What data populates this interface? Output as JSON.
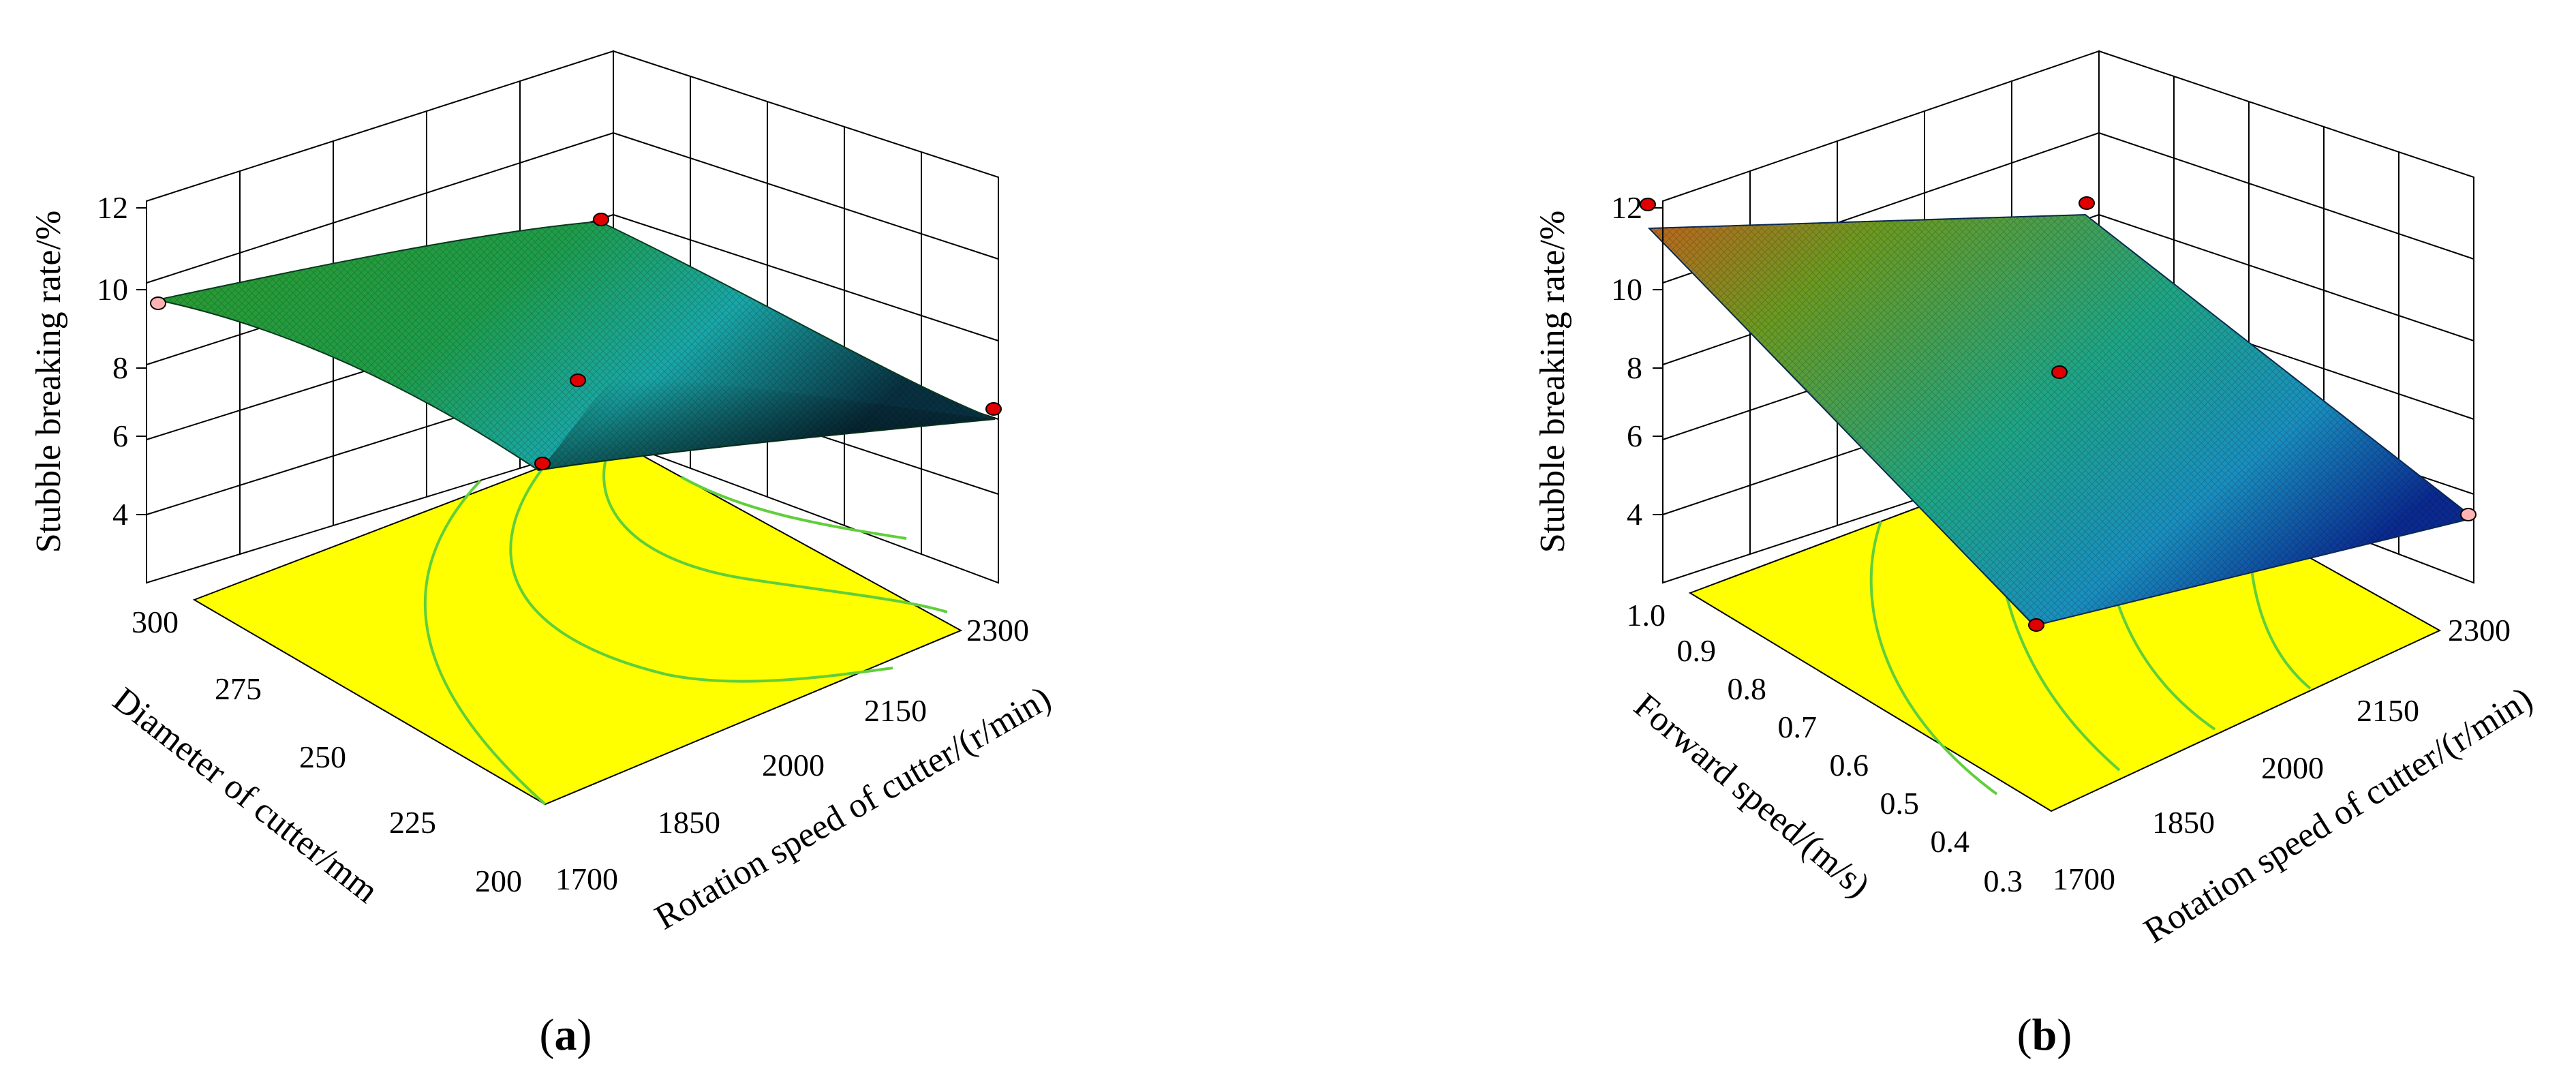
{
  "chart_data": [
    {
      "type": "surface",
      "panel_label": "a",
      "zlabel": "Stubble breaking rate/%",
      "zticks": [
        "4",
        "6",
        "8",
        "10",
        "12"
      ],
      "zlim": [
        3,
        12
      ],
      "xlabel": "Rotation speed of cutter/(r/min)",
      "xticks": [
        "1700",
        "1850",
        "2000",
        "2150",
        "2300"
      ],
      "ylabel": "Diameter of cutter/mm",
      "yticks": [
        "200",
        "225",
        "250",
        "275",
        "300"
      ],
      "surface_colors": [
        "#2a8f2a",
        "#1ea06a",
        "#1fb0c0",
        "#0b2a3a"
      ],
      "floor_color": "#ffff00",
      "contour_color": "#5fcf3a",
      "design_points": [
        {
          "x": 1700,
          "y": 300,
          "z": 9.8,
          "color": "#ffb3b3"
        },
        {
          "x": 2300,
          "y": 300,
          "z": 11.6,
          "color": "#e00000"
        },
        {
          "x": 2000,
          "y": 250,
          "z": 8.0,
          "color": "#e00000"
        },
        {
          "x": 2300,
          "y": 200,
          "z": 8.7,
          "color": "#e00000"
        },
        {
          "x": 1700,
          "y": 200,
          "z": 6.0,
          "color": "#e00000"
        }
      ]
    },
    {
      "type": "surface",
      "panel_label": "b",
      "zlabel": "Stubble breaking rate/%",
      "zticks": [
        "4",
        "6",
        "8",
        "10",
        "12"
      ],
      "zlim": [
        3,
        12
      ],
      "xlabel": "Rotation speed of cutter/(r/min)",
      "xticks": [
        "1700",
        "1850",
        "2000",
        "2150",
        "2300"
      ],
      "ylabel": "Forward speed/(m/s)",
      "yticks": [
        "0.3",
        "0.4",
        "0.5",
        "0.6",
        "0.7",
        "0.8",
        "0.9",
        "1.0"
      ],
      "surface_colors": [
        "#c06a20",
        "#5a9a20",
        "#1fa8a8",
        "#0a2a8a"
      ],
      "floor_color": "#ffff00",
      "contour_color": "#5fcf3a",
      "design_points": [
        {
          "x": 1700,
          "y": 1.0,
          "z": 11.7,
          "color": "#e00000"
        },
        {
          "x": 2300,
          "y": 1.0,
          "z": 12.0,
          "color": "#e00000"
        },
        {
          "x": 2000,
          "y": 0.65,
          "z": 8.2,
          "color": "#e00000"
        },
        {
          "x": 2300,
          "y": 0.3,
          "z": 4.0,
          "color": "#ffb3b3"
        },
        {
          "x": 1700,
          "y": 0.3,
          "z": 5.0,
          "color": "#e00000"
        }
      ]
    }
  ]
}
